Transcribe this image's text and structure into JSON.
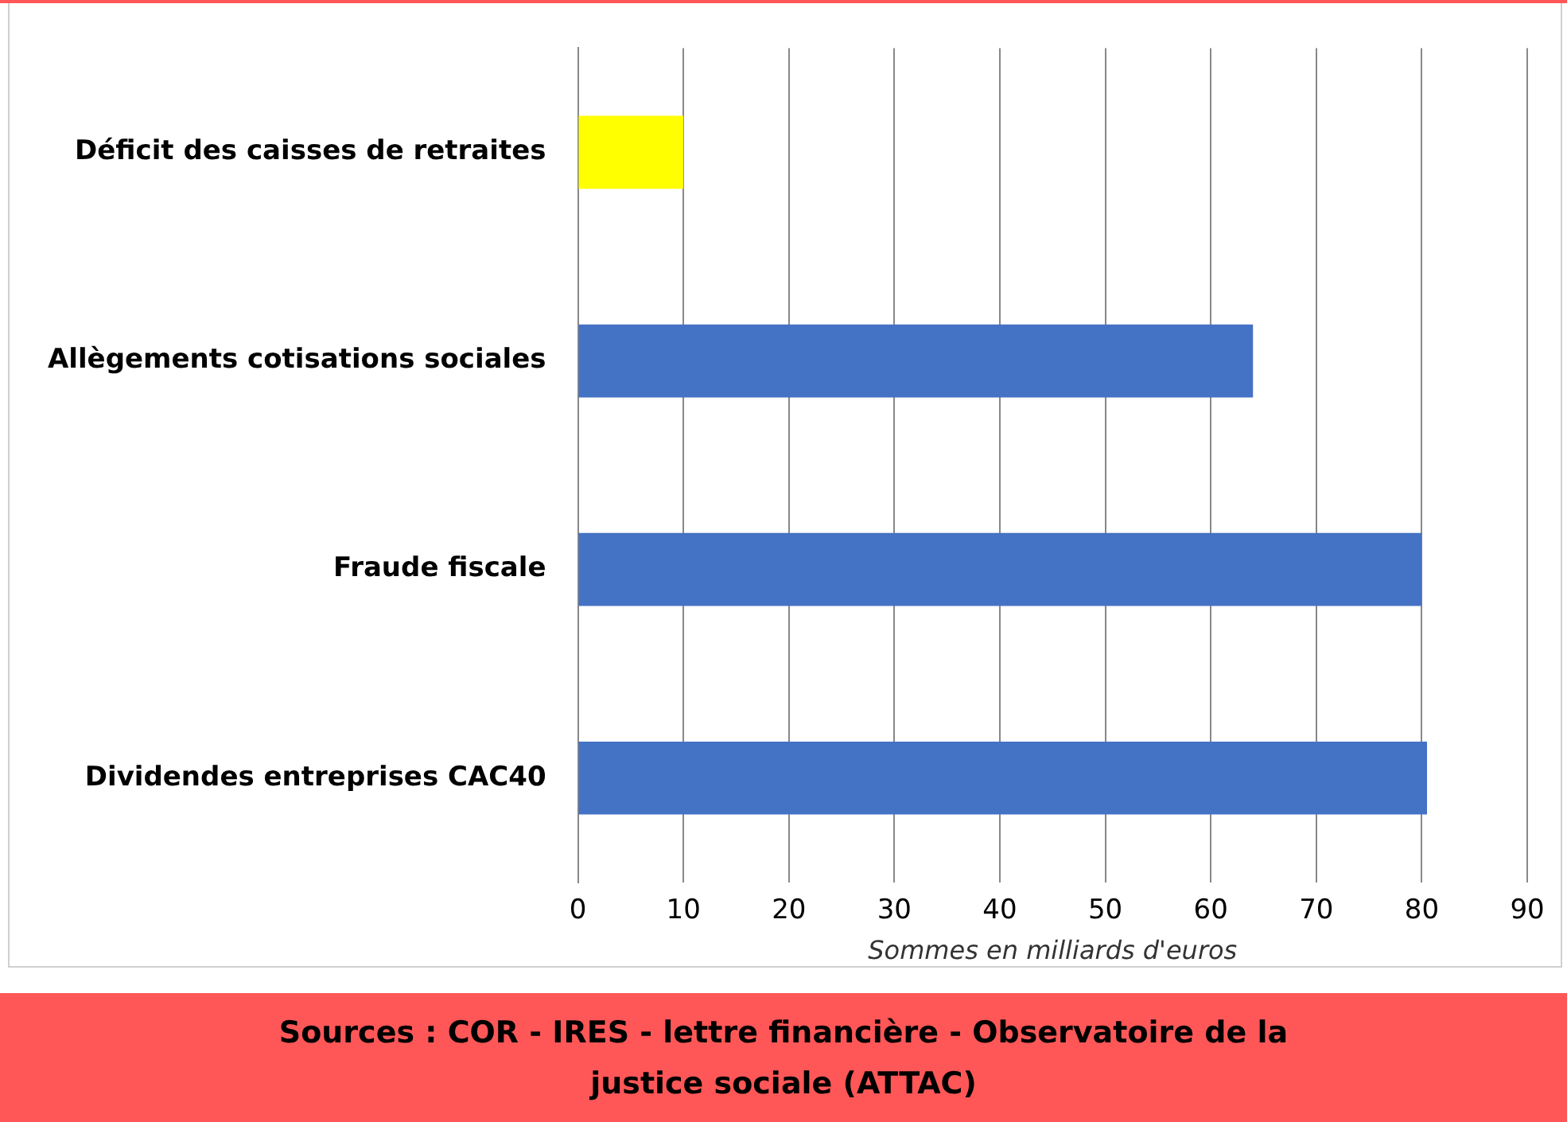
{
  "chart_data": {
    "type": "bar",
    "orientation": "horizontal",
    "categories": [
      "Déficit des caisses de retraites",
      "Allègements cotisations sociales",
      "Fraude fiscale",
      "Dividendes entreprises CAC40"
    ],
    "values": [
      10,
      64,
      80,
      80.5
    ],
    "colors": [
      "#ffff00",
      "#4472c4",
      "#4472c4",
      "#4472c4"
    ],
    "xlim": [
      0,
      90
    ],
    "xticks": [
      0,
      10,
      20,
      30,
      40,
      50,
      60,
      70,
      80,
      90
    ],
    "xlabel": "Sommes en milliards d'euros",
    "grid": "x",
    "legend": false,
    "annotations": [
      "Sources : COR - IRES - lettre financière - Observatoire de la justice sociale (ATTAC)"
    ]
  }
}
